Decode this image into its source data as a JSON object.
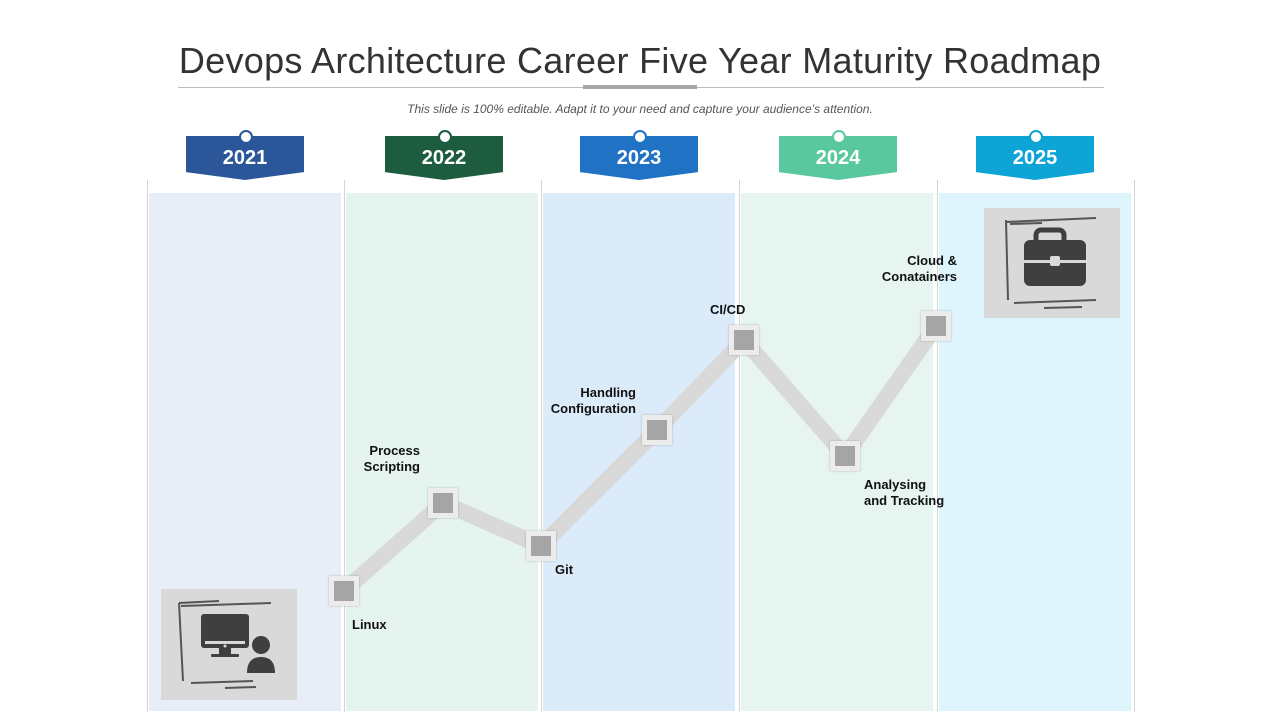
{
  "title": "Devops Architecture Career Five Year Maturity Roadmap",
  "subtitle": "This slide is 100% editable. Adapt it to your need and capture your audience’s attention.",
  "years": [
    {
      "label": "2021",
      "color": "#2b579a",
      "column_color": "#e8eef8"
    },
    {
      "label": "2022",
      "color": "#1d5c3f",
      "column_color": "#e5f4ee"
    },
    {
      "label": "2023",
      "color": "#1f72c4",
      "column_color": "#dcebfa"
    },
    {
      "label": "2024",
      "color": "#5ac89e",
      "column_color": "#e6f5ef"
    },
    {
      "label": "2025",
      "color": "#0ea5d6",
      "column_color": "#dff5fd"
    }
  ],
  "milestones": [
    {
      "line1": "Linux",
      "line2": ""
    },
    {
      "line1": "Process",
      "line2": "Scripting"
    },
    {
      "line1": "Git",
      "line2": ""
    },
    {
      "line1": "Handling",
      "line2": "Configuration"
    },
    {
      "line1": "CI/CD",
      "line2": ""
    },
    {
      "line1": "Analysing",
      "line2": "and Tracking"
    },
    {
      "line1": "Cloud &",
      "line2": "Conatainers"
    }
  ],
  "icons": {
    "start": "computer-user-icon",
    "end": "briefcase-icon"
  },
  "colors": {
    "path": "#d9d9d9",
    "marker": "#a5a5a5",
    "icon_box": "#d9d9d9",
    "icon": "#3f3f3f"
  }
}
